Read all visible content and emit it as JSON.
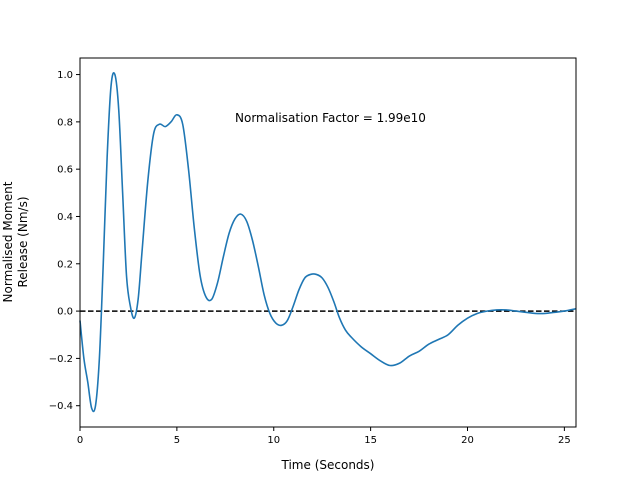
{
  "chart_data": {
    "type": "line",
    "title": "",
    "xlabel": "Time (Seconds)",
    "ylabel_lines": [
      "Normalised Moment",
      "Release (Nm/s)"
    ],
    "xlim": [
      0,
      25.6
    ],
    "ylim": [
      -0.49,
      1.07
    ],
    "xticks": [
      0,
      5,
      10,
      15,
      20,
      25
    ],
    "yticks": [
      -0.4,
      -0.2,
      0.0,
      0.2,
      0.4,
      0.6,
      0.8,
      1.0
    ],
    "xtick_labels": [
      "0",
      "5",
      "10",
      "15",
      "20",
      "25"
    ],
    "ytick_labels": [
      "−0.4",
      "−0.2",
      "0.0",
      "0.2",
      "0.4",
      "0.6",
      "0.8",
      "1.0"
    ],
    "annotation": "Normalisation Factor = 1.99e10",
    "reference_line": {
      "y": 0,
      "style": "dashed",
      "color": "#000000"
    },
    "grid": false,
    "series": [
      {
        "color": "#1f77b4",
        "x": [
          0,
          0.2,
          0.4,
          0.6,
          0.8,
          1.0,
          1.2,
          1.4,
          1.6,
          1.8,
          2.0,
          2.2,
          2.4,
          2.6,
          2.8,
          3.0,
          3.2,
          3.5,
          3.8,
          4.1,
          4.4,
          4.7,
          5.0,
          5.3,
          5.6,
          5.9,
          6.2,
          6.5,
          6.8,
          7.1,
          7.4,
          7.7,
          8.0,
          8.3,
          8.6,
          8.9,
          9.2,
          9.5,
          9.8,
          10.1,
          10.4,
          10.7,
          11.0,
          11.3,
          11.6,
          11.9,
          12.2,
          12.5,
          12.8,
          13.1,
          13.4,
          13.7,
          14.0,
          14.5,
          15.0,
          15.5,
          16.0,
          16.5,
          17.0,
          17.5,
          18.0,
          18.5,
          19.0,
          19.5,
          20.0,
          20.5,
          21.0,
          21.5,
          22.0,
          22.5,
          23.0,
          23.5,
          24.0,
          24.5,
          25.0,
          25.6
        ],
        "y": [
          -0.04,
          -0.2,
          -0.3,
          -0.41,
          -0.4,
          -0.2,
          0.2,
          0.65,
          0.95,
          1.0,
          0.85,
          0.5,
          0.15,
          0.02,
          -0.03,
          0.05,
          0.25,
          0.55,
          0.75,
          0.79,
          0.78,
          0.8,
          0.83,
          0.79,
          0.6,
          0.35,
          0.15,
          0.06,
          0.05,
          0.12,
          0.23,
          0.33,
          0.39,
          0.41,
          0.38,
          0.3,
          0.19,
          0.07,
          -0.01,
          -0.05,
          -0.06,
          -0.04,
          0.02,
          0.09,
          0.14,
          0.155,
          0.155,
          0.14,
          0.1,
          0.04,
          -0.03,
          -0.08,
          -0.11,
          -0.15,
          -0.18,
          -0.21,
          -0.23,
          -0.22,
          -0.19,
          -0.17,
          -0.14,
          -0.12,
          -0.1,
          -0.06,
          -0.03,
          -0.01,
          0.0,
          0.005,
          0.005,
          0.0,
          -0.005,
          -0.01,
          -0.01,
          -0.005,
          0.0,
          0.01
        ]
      }
    ]
  }
}
